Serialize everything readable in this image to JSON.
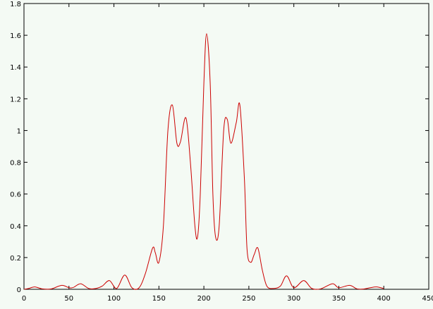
{
  "chart_data": {
    "type": "line",
    "title": "",
    "xlabel": "",
    "ylabel": "",
    "xlim": [
      0,
      450
    ],
    "ylim": [
      0,
      1.8
    ],
    "grid": false,
    "legend": "none",
    "x_ticks": [
      "0",
      "50",
      "100",
      "150",
      "200",
      "250",
      "300",
      "350",
      "400",
      "450"
    ],
    "y_ticks": [
      "0",
      "0.2",
      "0.4",
      "0.6",
      "0.8",
      "1",
      "1.2",
      "1.4",
      "1.6",
      "1.8"
    ],
    "series": [
      {
        "color": "#cc0000",
        "x": [
          0,
          5,
          12,
          20,
          30,
          42,
          50,
          55,
          63,
          72,
          80,
          87,
          95,
          103,
          112,
          120,
          128,
          135,
          143,
          146,
          150,
          155,
          160,
          165,
          170,
          174,
          180,
          185,
          190,
          193,
          196,
          200,
          203,
          207,
          210,
          213,
          217,
          222,
          226,
          230,
          236,
          240,
          245,
          248,
          252,
          256,
          260,
          265,
          270,
          277,
          285,
          292,
          300,
          311,
          320,
          330,
          343,
          350,
          362,
          370,
          378,
          385,
          392,
          400
        ],
        "y": [
          0,
          0.005,
          0.015,
          0.003,
          0.002,
          0.025,
          0.01,
          0.012,
          0.035,
          0.005,
          0.005,
          0.02,
          0.055,
          0.005,
          0.09,
          0.01,
          0.01,
          0.1,
          0.26,
          0.23,
          0.17,
          0.4,
          1.0,
          1.16,
          0.92,
          0.93,
          1.08,
          0.8,
          0.4,
          0.33,
          0.6,
          1.3,
          1.61,
          1.3,
          0.6,
          0.33,
          0.4,
          1.0,
          1.07,
          0.92,
          1.05,
          1.16,
          0.7,
          0.25,
          0.17,
          0.22,
          0.26,
          0.12,
          0.02,
          0.005,
          0.02,
          0.085,
          0.01,
          0.055,
          0.005,
          0.003,
          0.035,
          0.01,
          0.025,
          0.003,
          0.002,
          0.01,
          0.015,
          0.005
        ]
      }
    ]
  }
}
